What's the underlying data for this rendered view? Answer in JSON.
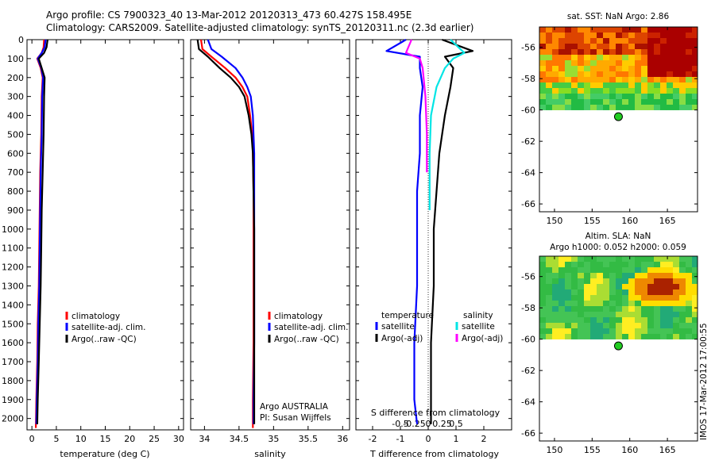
{
  "header": {
    "line1": "Argo profile: CS 7900323_40 13-Mar-2012 20120313_473 60.427S 158.495E",
    "line2": "Climatology: CARS2009. Satellite-adjusted climatology: synTS_20120311.nc (2.3d earlier)"
  },
  "footer": {
    "stamp": "IMOS 17-Mar-2012 17:00:55"
  },
  "colors": {
    "climatology": "#ff0000",
    "satellite": "#0000ff",
    "argo": "#000000",
    "sal_satellite": "#00e5e5",
    "sal_argo": "#ff00ff"
  },
  "chart_data": [
    {
      "type": "line",
      "id": "temperature",
      "xlabel": "temperature (deg C)",
      "ylabel": "",
      "xlim": [
        -1,
        31
      ],
      "ylim": [
        0,
        2060
      ],
      "y_inverted": true,
      "xticks": [
        0,
        5,
        10,
        15,
        20,
        25,
        30
      ],
      "yticks": [
        0,
        100,
        200,
        300,
        400,
        500,
        600,
        700,
        800,
        900,
        1000,
        1100,
        1200,
        1300,
        1400,
        1500,
        1600,
        1700,
        1800,
        1900,
        2000
      ],
      "legend": [
        "climatology",
        "satellite-adj. clim.",
        "Argo(..raw -QC)"
      ],
      "series": [
        {
          "key": "climatology",
          "x": [
            2.5,
            2.4,
            2.0,
            1.1,
            1.8,
            2.2,
            2.0,
            1.9,
            1.7,
            1.6,
            1.5,
            1.4,
            1.2,
            1.1,
            0.9,
            0.8
          ],
          "y": [
            0,
            40,
            70,
            100,
            150,
            200,
            300,
            500,
            700,
            900,
            1100,
            1300,
            1500,
            1700,
            1900,
            2050
          ]
        },
        {
          "key": "satellite",
          "x": [
            2.8,
            2.6,
            2.0,
            1.2,
            1.9,
            2.3,
            2.1,
            2.0,
            1.8,
            1.7,
            1.6,
            1.5,
            1.3,
            1.2,
            1.0,
            0.9
          ],
          "y": [
            0,
            40,
            70,
            100,
            150,
            200,
            300,
            500,
            700,
            900,
            1100,
            1300,
            1500,
            1700,
            1900,
            2030
          ]
        },
        {
          "key": "argo",
          "x": [
            3.2,
            3.0,
            2.5,
            1.4,
            2.0,
            2.6,
            2.5,
            2.4,
            2.2,
            2.0,
            1.9,
            1.8,
            1.6,
            1.4,
            1.2,
            1.1
          ],
          "y": [
            0,
            40,
            70,
            100,
            150,
            200,
            300,
            500,
            700,
            900,
            1100,
            1300,
            1500,
            1700,
            1900,
            2030
          ]
        }
      ]
    },
    {
      "type": "line",
      "id": "salinity",
      "xlabel": "salinity",
      "xlim": [
        33.8,
        36.1
      ],
      "ylim": [
        0,
        2060
      ],
      "y_inverted": true,
      "xticks": [
        34,
        34.5,
        35,
        35.5,
        36
      ],
      "legend": [
        "climatology",
        "satellite-adj. clim.",
        "Argo(..raw -QC)"
      ],
      "float_label": [
        "Argo AUSTRALIA",
        "PI: Susan Wijffels"
      ],
      "series": [
        {
          "key": "climatology",
          "x": [
            33.95,
            33.97,
            34.1,
            34.3,
            34.45,
            34.55,
            34.62,
            34.66,
            34.69,
            34.7,
            34.71,
            34.71,
            34.71,
            34.71,
            34.7,
            34.7
          ],
          "y": [
            0,
            50,
            90,
            150,
            200,
            250,
            300,
            400,
            500,
            600,
            800,
            1000,
            1300,
            1600,
            1900,
            2050
          ]
        },
        {
          "key": "satellite",
          "x": [
            34.05,
            34.1,
            34.25,
            34.45,
            34.55,
            34.62,
            34.67,
            34.7,
            34.71,
            34.72,
            34.72,
            34.72,
            34.72,
            34.72,
            34.71,
            34.71
          ],
          "y": [
            0,
            50,
            90,
            150,
            200,
            250,
            300,
            400,
            500,
            600,
            800,
            1000,
            1300,
            1600,
            1900,
            2030
          ]
        },
        {
          "key": "argo",
          "x": [
            33.9,
            33.92,
            34.05,
            34.22,
            34.38,
            34.5,
            34.58,
            34.64,
            34.68,
            34.7,
            34.71,
            34.72,
            34.72,
            34.72,
            34.72,
            34.72
          ],
          "y": [
            0,
            50,
            90,
            150,
            200,
            250,
            300,
            400,
            500,
            600,
            800,
            1000,
            1300,
            1600,
            1900,
            2030
          ]
        }
      ]
    },
    {
      "type": "line",
      "id": "difference",
      "xlabel": "T difference from climatology",
      "top_xlabel": "S difference from climatology",
      "xlim": [
        -2.6,
        3.0
      ],
      "ylim": [
        0,
        2060
      ],
      "y_inverted": true,
      "xticks": [
        -2,
        -1,
        0,
        1,
        2
      ],
      "top_xticks": [
        "-0.5",
        "-0.25",
        "0",
        "0.25",
        "0.5"
      ],
      "legend_headers": [
        "temperature",
        "salinity"
      ],
      "legend": [
        "satellite",
        "Argo(-adj)",
        "satellite",
        "Argo(-adj)"
      ],
      "series": [
        {
          "key": "satellite",
          "name": "satellite",
          "x": [
            -0.8,
            -1.5,
            -0.3,
            -0.3,
            -0.2,
            -0.3,
            -0.3,
            -0.4,
            -0.4,
            -0.4,
            -0.5,
            -0.5,
            -0.4
          ],
          "y": [
            0,
            60,
            90,
            150,
            250,
            400,
            600,
            800,
            1000,
            1300,
            1600,
            1900,
            2030
          ]
        },
        {
          "key": "argo",
          "name": "Argo(-adj)",
          "x": [
            0.5,
            1.6,
            0.6,
            0.9,
            0.8,
            0.6,
            0.4,
            0.3,
            0.2,
            0.2,
            0.1,
            0.1,
            0.1
          ],
          "y": [
            0,
            60,
            90,
            150,
            250,
            400,
            600,
            800,
            1000,
            1300,
            1600,
            1900,
            2030
          ]
        },
        {
          "key": "sal_satellite",
          "name": "satellite",
          "x": [
            0.8,
            1.3,
            0.9,
            0.6,
            0.3,
            0.1,
            0.05,
            0.05,
            0.05
          ],
          "y": [
            0,
            70,
            100,
            150,
            250,
            400,
            600,
            800,
            900
          ]
        },
        {
          "key": "sal_argo",
          "name": "Argo(-adj)",
          "x": [
            -0.6,
            -0.8,
            -0.3,
            -0.2,
            -0.1,
            -0.05,
            -0.05
          ],
          "y": [
            0,
            70,
            100,
            150,
            300,
            500,
            700
          ]
        }
      ]
    },
    {
      "type": "heatmap",
      "id": "sst_map",
      "title": "sat. SST: NaN Argo: 2.86",
      "xlim": [
        148,
        169
      ],
      "ylim": [
        -66.5,
        -54.7
      ],
      "xticks": [
        150,
        155,
        160,
        165
      ],
      "yticks": [
        -56,
        -58,
        -60,
        -62,
        -64,
        -66
      ],
      "data_extent_lat": [
        -54.7,
        -60.0
      ],
      "argo_position": {
        "lon": 158.495,
        "lat": -60.427
      }
    },
    {
      "type": "heatmap",
      "id": "sla_map",
      "title_line1": "Altim. SLA: NaN",
      "title_line2": "Argo h1000: 0.052 h2000: 0.059",
      "xlim": [
        148,
        169
      ],
      "ylim": [
        -66.5,
        -54.7
      ],
      "xticks": [
        150,
        155,
        160,
        165
      ],
      "yticks": [
        -56,
        -58,
        -60,
        -62,
        -64,
        -66
      ],
      "data_extent_lat": [
        -54.7,
        -60.0
      ],
      "argo_position": {
        "lon": 158.495,
        "lat": -60.427
      }
    }
  ]
}
